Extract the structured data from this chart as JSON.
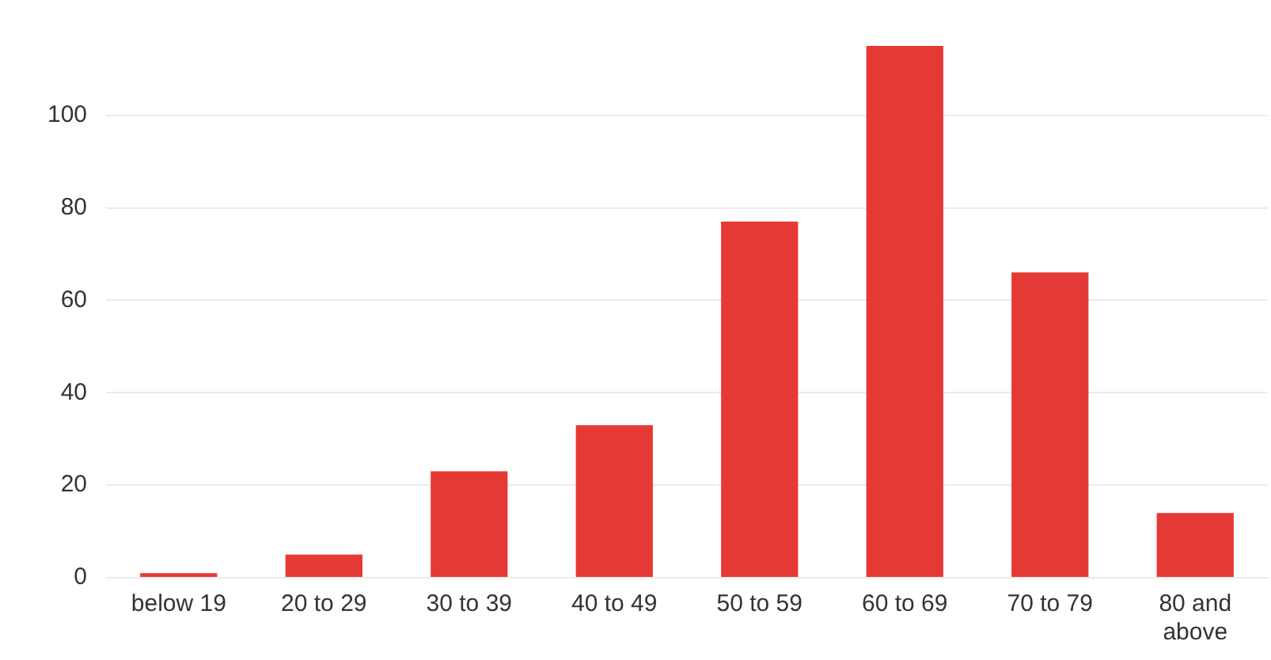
{
  "chart_data": {
    "type": "bar",
    "categories": [
      "below 19",
      "20 to 29",
      "30 to 39",
      "40 to 49",
      "50 to 59",
      "60 to 69",
      "70 to 79",
      "80 and above"
    ],
    "values": [
      1,
      5,
      23,
      33,
      77,
      115,
      66,
      14
    ],
    "color": "#e53935",
    "ylim": [
      0,
      115
    ],
    "yticks": [
      0,
      20,
      40,
      60,
      80,
      100
    ],
    "grid": "y",
    "legend": false
  }
}
